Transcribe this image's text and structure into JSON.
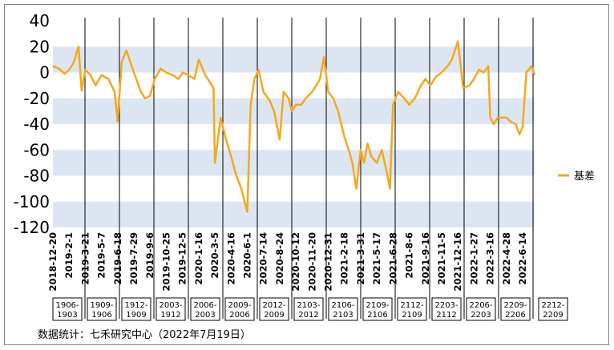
{
  "chart_data": {
    "type": "line",
    "title": "",
    "xlabel": "",
    "ylabel": "",
    "ylim": [
      -120,
      40
    ],
    "yticks": [
      40,
      20,
      0,
      -20,
      -40,
      -60,
      -80,
      -100,
      -120
    ],
    "ytick_labels": [
      "40",
      "20",
      "0",
      "-20",
      "-40",
      "-60",
      "-80",
      "-100",
      "-120"
    ],
    "grid": "alternating horizontal light-blue bands",
    "legend_position": "right",
    "x_tick_labels": [
      "2018-12-20",
      "2019-2-1",
      "2019-3-21",
      "2019-5-7",
      "2019-6-18",
      "2019-7-29",
      "2019-9-6",
      "2019-10-25",
      "2019-12-5",
      "2020-1-16",
      "2020-3-5",
      "2020-4-16",
      "2020-6-1",
      "2020-7-14",
      "2020-8-24",
      "2020-10-12",
      "2020-11-20",
      "2020-12-31",
      "2021-2-18",
      "2021-3-31",
      "2021-5-17",
      "2021-6-28",
      "2021-8-6",
      "2021-9-16",
      "2021-11-5",
      "2021-12-16",
      "2022-1-27",
      "2022-3-16",
      "2022-4-28",
      "2022-6-14"
    ],
    "contract_spreads": [
      "1906-1903",
      "1909-1906",
      "1912-1909",
      "2003-1912",
      "2006-2003",
      "2009-2006",
      "2012-2009",
      "2103-2012",
      "2106-2103",
      "2109-2106",
      "2112-2109",
      "2203-2112",
      "2206-2203",
      "2209-2206",
      "2212-2209"
    ],
    "series": [
      {
        "name": "基差",
        "color": "#f5a81c",
        "x": [
          "2018-12-20",
          "2019-1-5",
          "2019-1-20",
          "2019-2-1",
          "2019-2-15",
          "2019-3-1",
          "2019-3-10",
          "2019-3-21",
          "2019-4-5",
          "2019-4-20",
          "2019-5-7",
          "2019-5-25",
          "2019-6-10",
          "2019-6-18",
          "2019-6-28",
          "2019-7-10",
          "2019-7-29",
          "2019-8-15",
          "2019-8-25",
          "2019-9-6",
          "2019-9-20",
          "2019-10-8",
          "2019-10-25",
          "2019-11-10",
          "2019-11-25",
          "2019-12-5",
          "2019-12-20",
          "2020-1-5",
          "2020-1-16",
          "2020-2-5",
          "2020-2-20",
          "2020-3-1",
          "2020-3-5",
          "2020-3-20",
          "2020-4-1",
          "2020-4-16",
          "2020-5-1",
          "2020-5-15",
          "2020-6-1",
          "2020-6-10",
          "2020-6-20",
          "2020-7-1",
          "2020-7-14",
          "2020-7-30",
          "2020-8-10",
          "2020-8-24",
          "2020-9-5",
          "2020-9-20",
          "2020-9-30",
          "2020-10-12",
          "2020-10-25",
          "2020-11-5",
          "2020-11-20",
          "2020-12-1",
          "2020-12-10",
          "2020-12-20",
          "2020-12-31",
          "2021-1-15",
          "2021-1-30",
          "2021-2-18",
          "2021-3-1",
          "2021-3-10",
          "2021-3-20",
          "2021-3-31",
          "2021-4-10",
          "2021-4-20",
          "2021-5-1",
          "2021-5-17",
          "2021-5-30",
          "2021-6-10",
          "2021-6-20",
          "2021-6-28",
          "2021-7-10",
          "2021-7-25",
          "2021-8-6",
          "2021-8-20",
          "2021-9-5",
          "2021-9-16",
          "2021-10-1",
          "2021-10-20",
          "2021-11-5",
          "2021-11-20",
          "2021-12-1",
          "2021-12-16",
          "2021-12-30",
          "2022-1-15",
          "2022-1-27",
          "2022-2-10",
          "2022-2-25",
          "2022-3-10",
          "2022-3-16",
          "2022-3-25",
          "2022-4-5",
          "2022-4-15",
          "2022-4-28",
          "2022-5-10",
          "2022-5-25",
          "2022-6-5",
          "2022-6-14",
          "2022-6-25",
          "2022-7-10",
          "2022-7-19"
        ],
        "values": [
          5,
          3,
          -1,
          2,
          8,
          20,
          -14,
          2,
          -2,
          -10,
          -2,
          -5,
          -15,
          -38,
          8,
          17,
          0,
          -15,
          -20,
          -18,
          -5,
          3,
          0,
          -2,
          -5,
          0,
          -2,
          -5,
          10,
          -2,
          -8,
          -12,
          -70,
          -35,
          -50,
          -65,
          -80,
          -90,
          -108,
          -25,
          -5,
          2,
          -15,
          -22,
          -30,
          -52,
          -15,
          -20,
          -30,
          -25,
          -25,
          -20,
          -15,
          -10,
          -5,
          12,
          -15,
          -20,
          -30,
          -50,
          -60,
          -70,
          -90,
          -60,
          -70,
          -55,
          -65,
          -70,
          -60,
          -75,
          -90,
          -25,
          -15,
          -20,
          -25,
          -20,
          -10,
          -5,
          -10,
          -3,
          0,
          5,
          10,
          24,
          -12,
          -10,
          -5,
          2,
          0,
          5,
          -35,
          -40,
          -35,
          -35,
          -35,
          -38,
          -40,
          -48,
          -42,
          0,
          5,
          -2
        ]
      }
    ]
  },
  "legend": {
    "label": "基差"
  },
  "source_note": "数据统计：七禾研究中心（2022年7月19日）"
}
